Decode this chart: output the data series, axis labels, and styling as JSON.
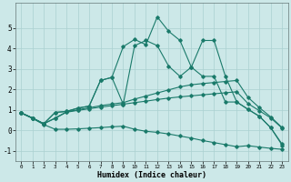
{
  "xlabel": "Humidex (Indice chaleur)",
  "xlim": [
    -0.5,
    23.5
  ],
  "ylim": [
    -1.5,
    6.2
  ],
  "yticks": [
    -1,
    0,
    1,
    2,
    3,
    4,
    5
  ],
  "xticks": [
    0,
    1,
    2,
    3,
    4,
    5,
    6,
    7,
    8,
    9,
    10,
    11,
    12,
    13,
    14,
    15,
    16,
    17,
    18,
    19,
    20,
    21,
    22,
    23
  ],
  "bg_color": "#cce8e8",
  "grid_color": "#aad0d0",
  "line_color": "#1a7a6a",
  "series_y": [
    [
      0.85,
      0.58,
      0.28,
      0.05,
      0.05,
      0.07,
      0.1,
      0.13,
      0.17,
      0.2,
      0.05,
      -0.05,
      -0.1,
      -0.18,
      -0.28,
      -0.38,
      -0.5,
      -0.6,
      -0.7,
      -0.8,
      -0.75,
      -0.82,
      -0.88,
      -0.93
    ],
    [
      0.85,
      0.6,
      0.32,
      0.58,
      0.88,
      0.97,
      1.05,
      1.13,
      1.2,
      1.27,
      1.35,
      1.42,
      1.5,
      1.57,
      1.63,
      1.68,
      1.73,
      1.78,
      1.83,
      1.88,
      1.3,
      0.95,
      0.6,
      0.1
    ],
    [
      0.85,
      0.6,
      0.32,
      0.6,
      0.9,
      1.0,
      1.1,
      1.2,
      1.28,
      1.35,
      1.52,
      1.67,
      1.82,
      1.97,
      2.12,
      2.22,
      2.28,
      2.33,
      2.38,
      2.43,
      1.6,
      1.1,
      0.65,
      0.13
    ],
    [
      0.85,
      0.6,
      0.32,
      0.87,
      0.92,
      1.08,
      1.18,
      2.43,
      2.58,
      1.27,
      4.13,
      4.38,
      4.13,
      3.13,
      2.63,
      3.08,
      4.38,
      4.38,
      2.63,
      1.38,
      1.02,
      0.68,
      0.12,
      -0.68
    ],
    [
      0.85,
      0.6,
      0.32,
      0.87,
      0.92,
      1.08,
      1.18,
      2.43,
      2.58,
      4.08,
      4.43,
      4.18,
      5.53,
      4.83,
      4.38,
      3.08,
      2.63,
      2.63,
      1.38,
      1.38,
      1.02,
      0.68,
      0.12,
      -0.73
    ]
  ]
}
